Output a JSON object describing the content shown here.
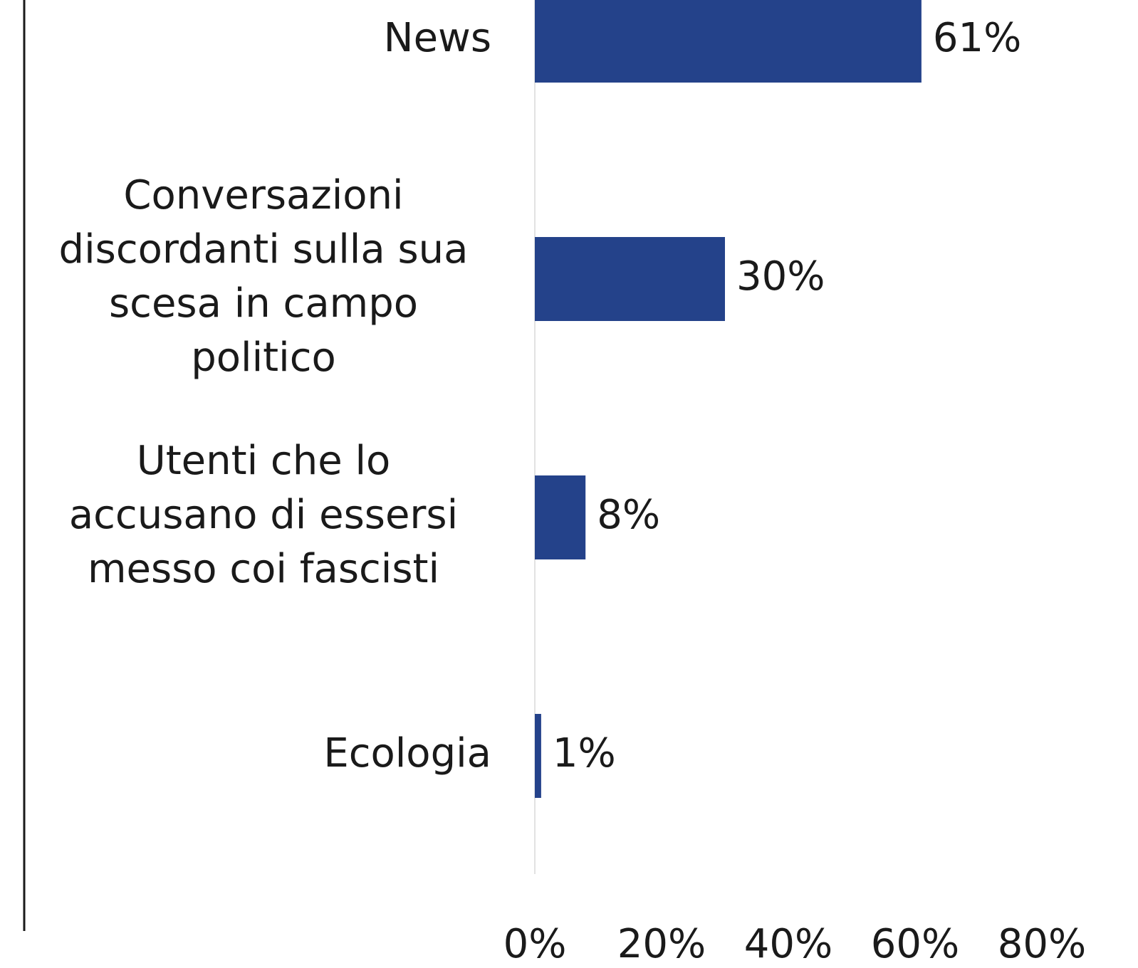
{
  "chart_data": {
    "type": "bar",
    "orientation": "horizontal",
    "categories": [
      "News",
      "Conversazioni discordanti sulla sua scesa in campo politico",
      "Utenti che lo accusano di essersi messo coi fascisti",
      "Ecologia"
    ],
    "category_lines": [
      [
        "News"
      ],
      [
        "Conversazioni",
        "discordanti sulla sua",
        "scesa in campo",
        "politico"
      ],
      [
        "Utenti che lo",
        "accusano di essersi",
        "messo coi fascisti"
      ],
      [
        "Ecologia"
      ]
    ],
    "values": [
      61,
      30,
      8,
      1
    ],
    "value_labels": [
      "61%",
      "30%",
      "8%",
      "1%"
    ],
    "xlim": [
      0,
      80
    ],
    "xticks": [
      0,
      20,
      40,
      60,
      80
    ],
    "xtick_labels": [
      "0%",
      "20%",
      "40%",
      "60%",
      "80%"
    ],
    "title": "",
    "xlabel": "",
    "ylabel": "",
    "grid": false,
    "legend": "none",
    "bar_color": "#24428a",
    "axis_color": "#e2e2e2",
    "frame_color": "#1a1a1a"
  }
}
